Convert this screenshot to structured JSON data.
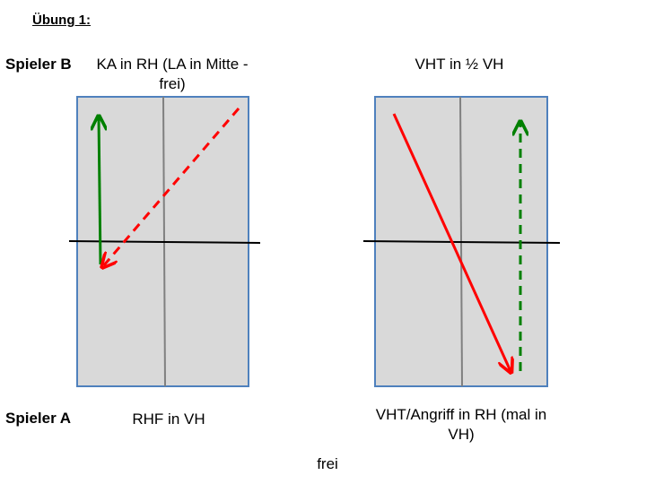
{
  "title": "Übung 1:",
  "player_b": "Spieler B",
  "player_a": "Spieler A",
  "table1": {
    "top_label": "KA in RH (LA in Mitte - frei)",
    "bottom_label": "RHF in VH"
  },
  "table2": {
    "top_label": "VHT in ½ VH",
    "bottom_label": "VHT/Angriff in RH (mal in VH)"
  },
  "footer": "frei",
  "colors": {
    "table_fill": "#d9d9d9",
    "table_border": "#4f81bd",
    "center_line": "#808080",
    "net": "#000000",
    "red_arrow": "#ff0000",
    "green_arrow": "#008000"
  }
}
